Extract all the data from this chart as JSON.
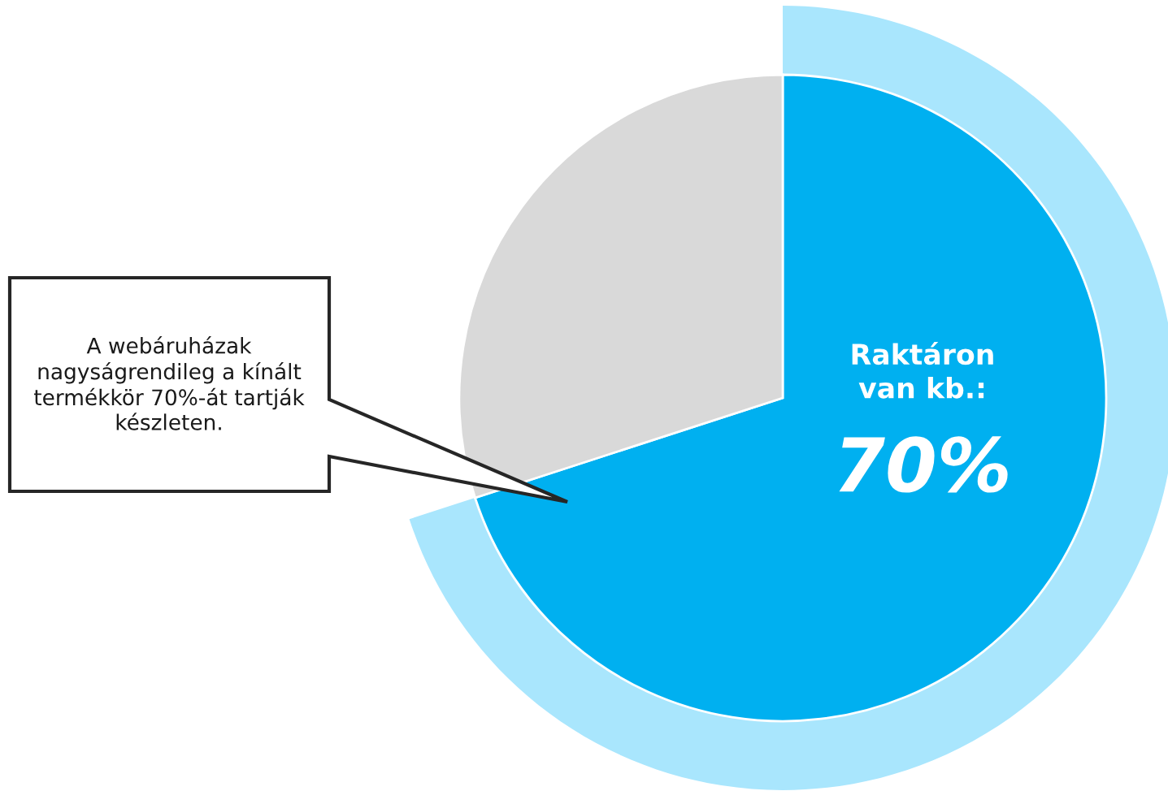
{
  "chart_data": {
    "type": "pie",
    "categories": [
      null,
      null
    ],
    "values": [
      70,
      30
    ],
    "colors": [
      "#00b0f0",
      "#d9d9d9"
    ],
    "value_labels": [
      "70%",
      null
    ],
    "annotations": [
      "Raktáron\nvan kb.:",
      "A webáruházak\nnagyságrendileg a kínált\ntermékkör 70%-át tartják\nkészleten."
    ],
    "legend": false
  }
}
